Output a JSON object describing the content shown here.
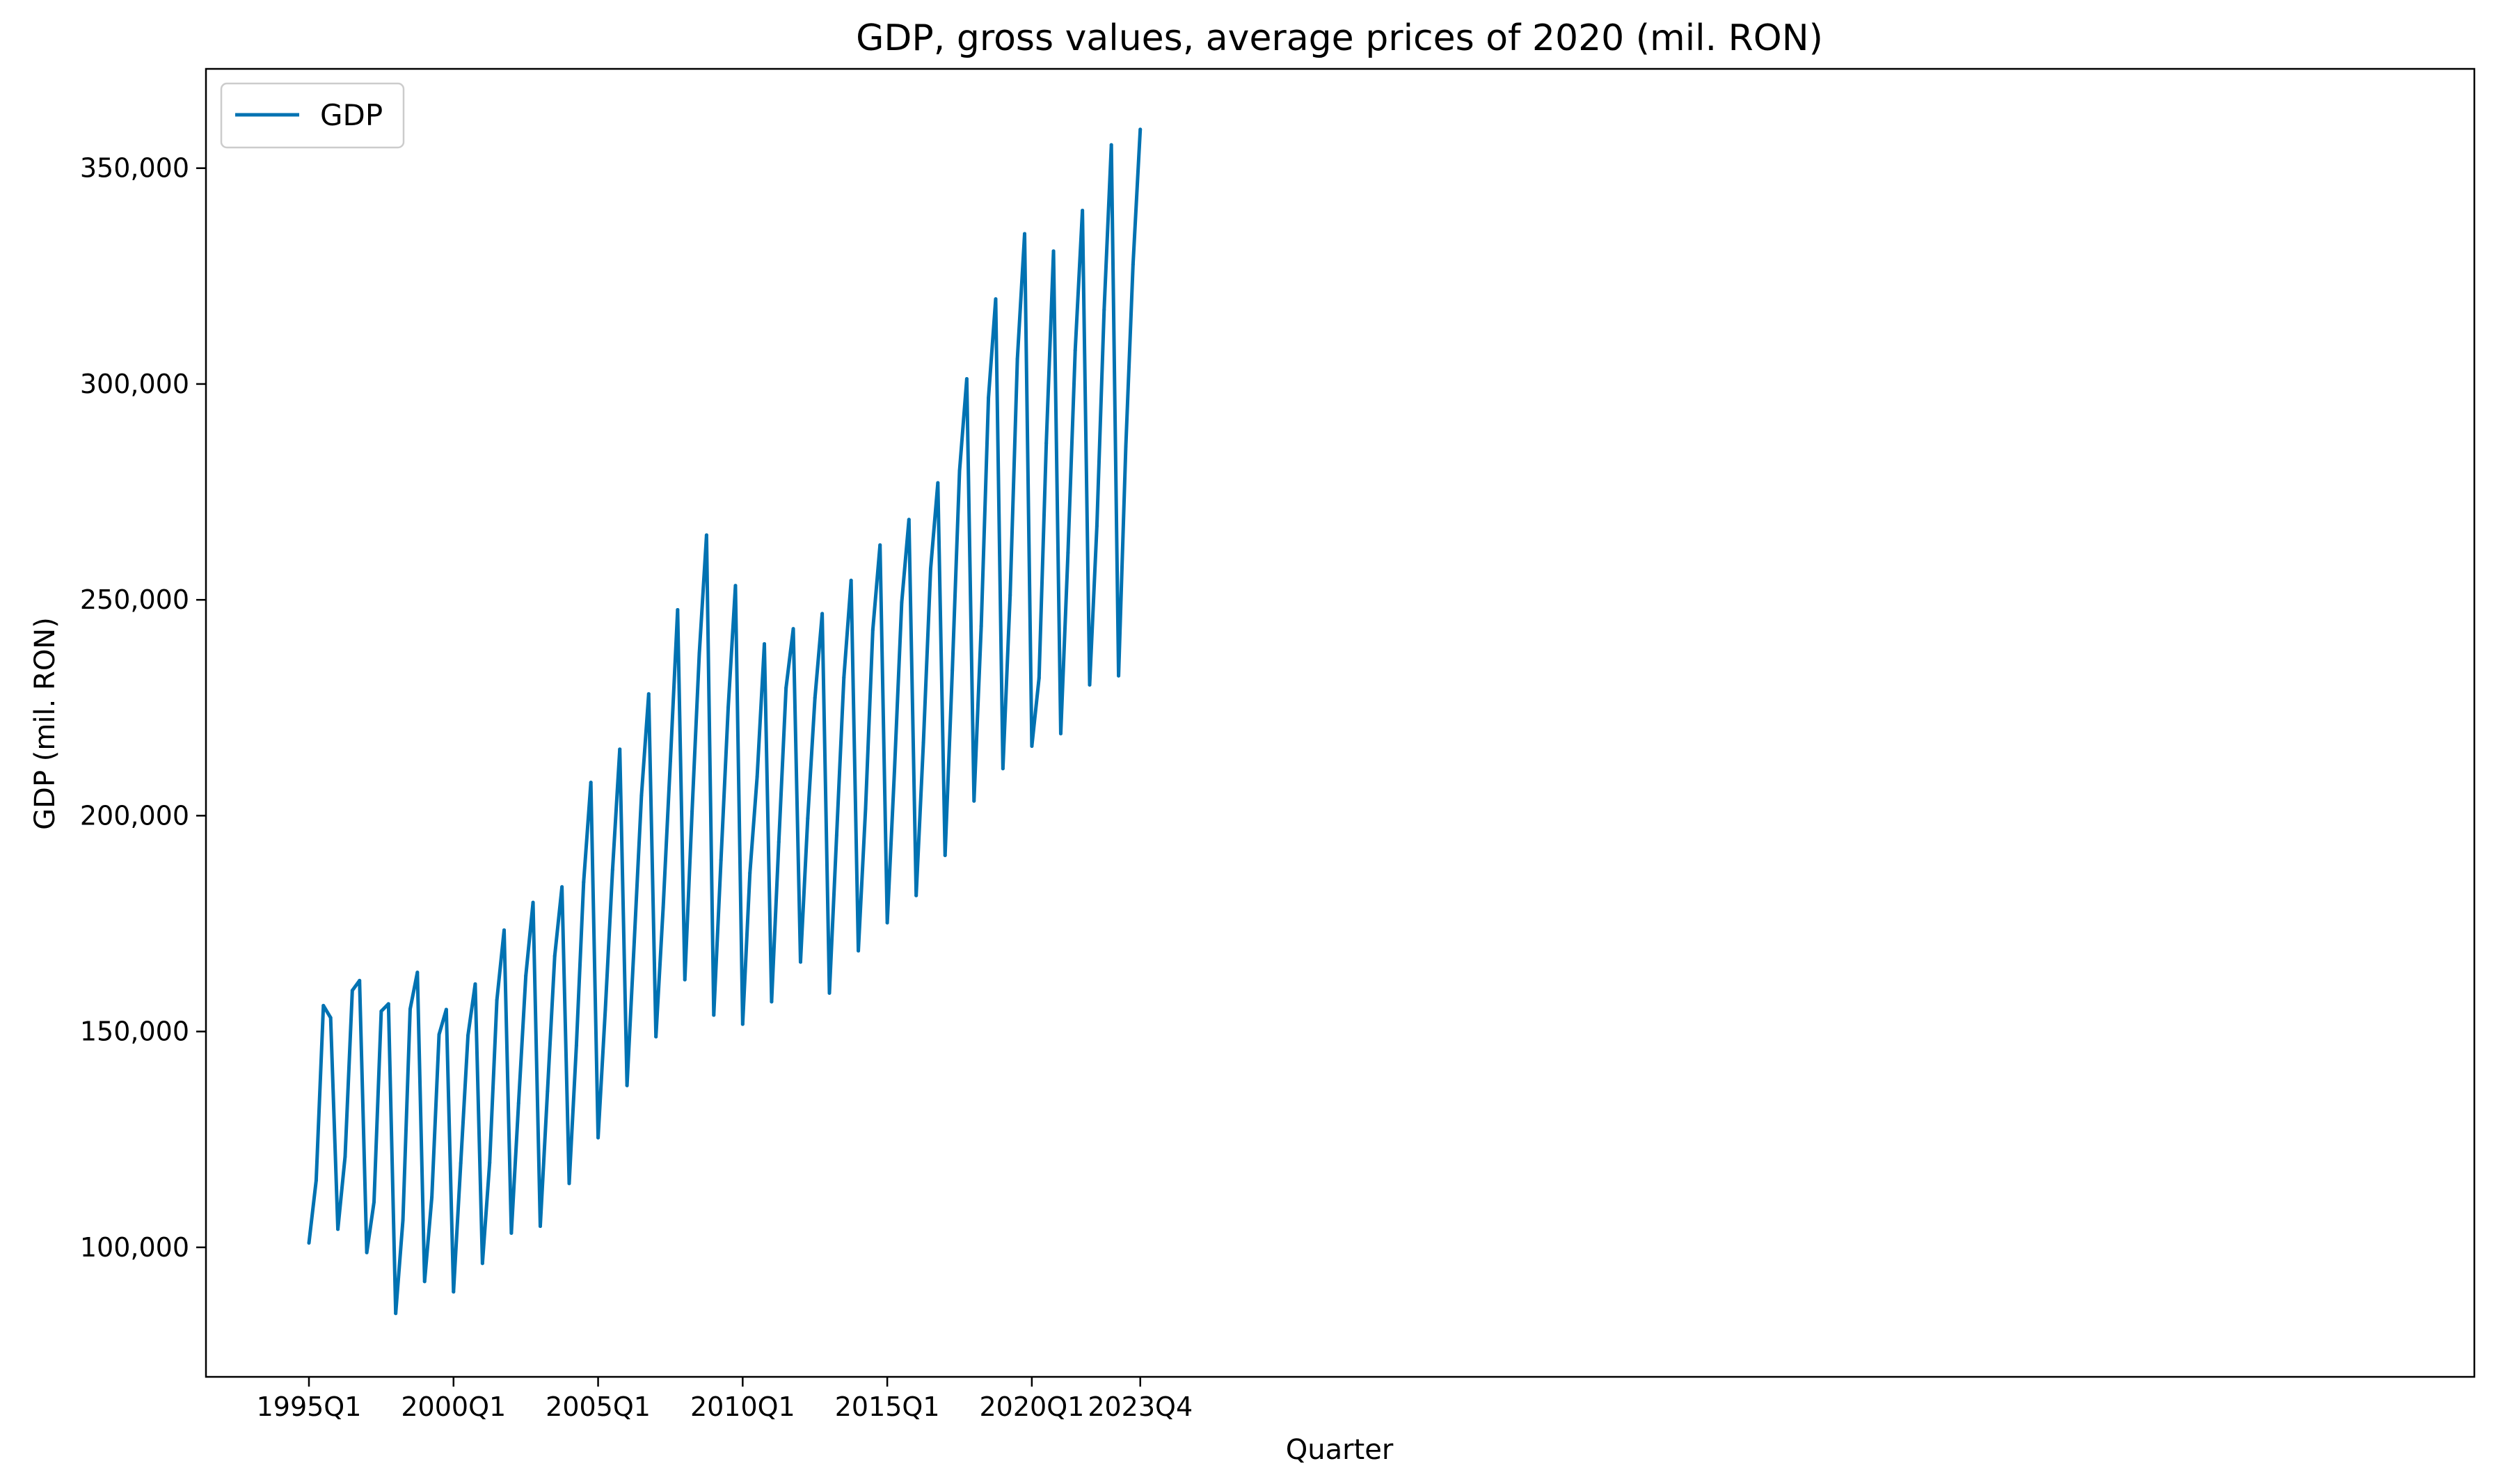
{
  "chart_data": {
    "type": "line",
    "title": "GDP, gross values, average prices of 2020 (mil. RON)",
    "xlabel": "Quarter",
    "ylabel": "GDP (mil. RON)",
    "x_ticks": [
      "1995Q1",
      "2000Q1",
      "2005Q1",
      "2010Q1",
      "2015Q1",
      "2020Q1",
      "2023Q4"
    ],
    "y_ticks": [
      100000,
      150000,
      200000,
      250000,
      300000,
      350000
    ],
    "y_tick_labels": [
      "100,000",
      "150,000",
      "200,000",
      "250,000",
      "300,000",
      "350,000"
    ],
    "ylim": [
      70000,
      373000
    ],
    "legend": {
      "position": "top-left",
      "entries": [
        "GDP"
      ]
    },
    "grid": false,
    "series": [
      {
        "name": "GDP",
        "color": "#0072b2",
        "start_quarter": "1995Q1",
        "values": [
          101000,
          115500,
          156000,
          153200,
          104200,
          121000,
          159500,
          161800,
          98800,
          110500,
          154700,
          156400,
          84700,
          106300,
          155200,
          163700,
          92100,
          111600,
          149300,
          155100,
          89700,
          119500,
          149100,
          161000,
          96300,
          119600,
          157300,
          173500,
          103300,
          133400,
          162900,
          179900,
          104900,
          136200,
          167500,
          183500,
          114800,
          146800,
          184600,
          207700,
          125400,
          155100,
          187500,
          215400,
          137500,
          170800,
          204700,
          228200,
          148800,
          178700,
          212700,
          247700,
          162000,
          201000,
          237600,
          265000,
          153800,
          189700,
          225100,
          253300,
          151700,
          186700,
          209000,
          239800,
          156900,
          193900,
          229600,
          243300,
          166100,
          199400,
          227300,
          246800,
          158900,
          195500,
          232000,
          254500,
          168700,
          201600,
          243000,
          262700,
          175200,
          210500,
          249400,
          268600,
          181500,
          216900,
          257200,
          277100,
          190800,
          233600,
          279900,
          301200,
          203400,
          243900,
          296800,
          319700,
          210900,
          251100,
          305800,
          334800,
          216100,
          231900,
          286300,
          330800,
          219000,
          260900,
          307800,
          340200,
          230300,
          267100,
          317200,
          355400,
          232400,
          285500,
          327700,
          359000
        ]
      }
    ]
  }
}
